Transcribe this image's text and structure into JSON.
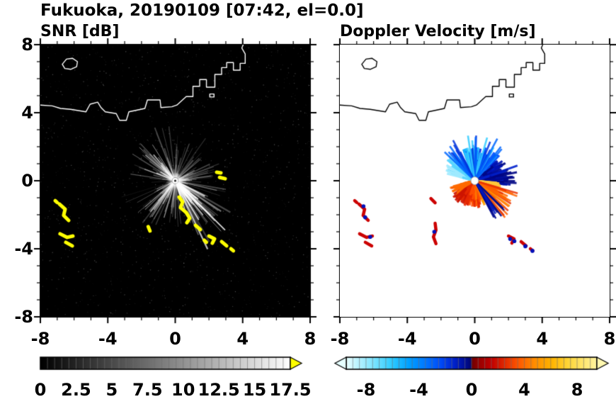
{
  "header": {
    "title": "Fukuoka, 20190109 [07:42, el=0.0]"
  },
  "chart_data": [
    {
      "type": "heatmap",
      "title": "SNR [dB]",
      "xlim": [
        -8,
        8
      ],
      "ylim": [
        -8,
        8
      ],
      "x_tick_values": [
        -8,
        -4,
        0,
        4,
        8
      ],
      "x_tick_labels": [
        "-8",
        "-4",
        "0",
        "4",
        "8"
      ],
      "y_tick_values": [
        -8,
        -4,
        0,
        4,
        8
      ],
      "y_tick_labels": [
        "-8",
        "-4",
        "0",
        "4",
        "8"
      ],
      "minor_tick_step": 1,
      "grid": false,
      "background_color": "#000000",
      "coastline_color": "#ffffff",
      "radar_center": [
        0,
        0
      ],
      "colorbar": {
        "range": [
          0,
          17.5
        ],
        "tick_values": [
          0,
          2.5,
          5,
          7.5,
          10,
          12.5,
          15,
          17.5
        ],
        "tick_labels": [
          "0",
          "2.5",
          "5",
          "7.5",
          "10",
          "12.5",
          "15",
          "17.5"
        ],
        "segment_step": 0.5,
        "stops": [
          [
            0,
            "#000000"
          ],
          [
            1,
            "#ffffff"
          ]
        ],
        "over_arrow_color": "#ffff00"
      }
    },
    {
      "type": "heatmap",
      "title": "Doppler Velocity [m/s]",
      "xlim": [
        -8,
        8
      ],
      "ylim": [
        -8,
        8
      ],
      "x_tick_values": [
        -8,
        -4,
        0,
        4,
        8
      ],
      "x_tick_labels": [
        "-8",
        "-4",
        "0",
        "4",
        "8"
      ],
      "y_tick_values": [
        -8,
        -4,
        0,
        4,
        8
      ],
      "y_tick_labels": [
        "-8",
        "-4",
        "0",
        "4",
        "8"
      ],
      "minor_tick_step": 1,
      "grid": false,
      "background_color": "#ffffff",
      "coastline_color": "#000000",
      "radar_center": [
        0,
        0
      ],
      "colorbar": {
        "range": [
          -9.5,
          9.5
        ],
        "tick_values": [
          -8,
          -4,
          0,
          4,
          8
        ],
        "tick_labels": [
          "-8",
          "-4",
          "0",
          "4",
          "8"
        ],
        "segment_step": 0.5,
        "stops": [
          [
            0.0,
            "#eaffff"
          ],
          [
            0.04,
            "#c0f4ff"
          ],
          [
            0.11,
            "#7ce4ff"
          ],
          [
            0.18,
            "#30ccff"
          ],
          [
            0.25,
            "#00a0ff"
          ],
          [
            0.32,
            "#0074ff"
          ],
          [
            0.38,
            "#0048f4"
          ],
          [
            0.43,
            "#0022cc"
          ],
          [
            0.475,
            "#000e96"
          ],
          [
            0.497,
            "#000670"
          ],
          [
            0.503,
            "#700000"
          ],
          [
            0.53,
            "#980000"
          ],
          [
            0.58,
            "#c00000"
          ],
          [
            0.63,
            "#e02800"
          ],
          [
            0.69,
            "#ff5a00"
          ],
          [
            0.75,
            "#ff8c00"
          ],
          [
            0.82,
            "#ffb400"
          ],
          [
            0.89,
            "#ffd83c"
          ],
          [
            1.0,
            "#fff4a0"
          ]
        ],
        "under_arrow_color": "#e6ffff",
        "over_arrow_color": "#fff8b0"
      }
    }
  ],
  "features": {
    "colors": {
      "snr_clutter": "#ffff00",
      "snr_ray": "#ffffff",
      "doppler_clutter_red": "#cc0000",
      "doppler_clutter_blue": "#0010bb"
    },
    "coastline": [
      [
        [
          -8.0,
          4.45
        ],
        [
          -7.3,
          4.4
        ],
        [
          -6.8,
          4.25
        ],
        [
          -6.2,
          4.2
        ],
        [
          -5.3,
          4.05
        ],
        [
          -5.05,
          4.5
        ],
        [
          -4.6,
          4.62
        ],
        [
          -4.4,
          4.3
        ],
        [
          -4.15,
          4.05
        ],
        [
          -3.5,
          3.95
        ],
        [
          -3.3,
          3.55
        ],
        [
          -2.9,
          3.55
        ],
        [
          -2.75,
          4.05
        ],
        [
          -1.8,
          4.25
        ],
        [
          -1.65,
          4.75
        ],
        [
          -0.9,
          4.75
        ],
        [
          -0.85,
          4.3
        ],
        [
          -0.2,
          4.35
        ],
        [
          0.1,
          4.45
        ],
        [
          0.65,
          4.95
        ],
        [
          1.05,
          4.95
        ],
        [
          1.05,
          5.55
        ],
        [
          1.45,
          5.55
        ],
        [
          1.45,
          5.95
        ],
        [
          1.85,
          5.95
        ],
        [
          1.85,
          5.5
        ],
        [
          2.35,
          5.5
        ],
        [
          2.35,
          6.25
        ],
        [
          2.75,
          6.25
        ],
        [
          2.75,
          6.65
        ],
        [
          3.05,
          6.65
        ],
        [
          3.05,
          6.95
        ],
        [
          3.45,
          6.95
        ],
        [
          3.45,
          6.5
        ],
        [
          3.85,
          6.5
        ],
        [
          3.85,
          6.9
        ],
        [
          4.15,
          6.9
        ],
        [
          4.15,
          7.45
        ],
        [
          3.95,
          7.8
        ],
        [
          4.05,
          8.05
        ]
      ],
      [
        [
          -6.7,
          6.85
        ],
        [
          -6.45,
          7.15
        ],
        [
          -6.1,
          7.2
        ],
        [
          -5.8,
          7.0
        ],
        [
          -5.85,
          6.7
        ],
        [
          -6.2,
          6.55
        ],
        [
          -6.55,
          6.6
        ],
        [
          -6.7,
          6.85
        ]
      ],
      [
        [
          2.05,
          5.1
        ],
        [
          2.3,
          5.1
        ],
        [
          2.3,
          4.92
        ],
        [
          2.05,
          4.92
        ],
        [
          2.05,
          5.1
        ]
      ]
    ],
    "snr_rays": [
      {
        "az": [
          0,
          360
        ],
        "count": 170,
        "len": [
          0.4,
          3.4
        ],
        "alpha": [
          0.04,
          0.38
        ],
        "width": [
          0.7,
          1.7
        ]
      },
      {
        "az": [
          116,
          164
        ],
        "count": 42,
        "len": [
          1.0,
          4.7
        ],
        "alpha": [
          0.2,
          0.9
        ],
        "width": [
          0.9,
          2.3
        ]
      },
      {
        "az": [
          288,
          334
        ],
        "count": 26,
        "len": [
          0.8,
          3.2
        ],
        "alpha": [
          0.15,
          0.7
        ],
        "width": [
          0.8,
          2.0
        ]
      },
      {
        "az": [
          196,
          244
        ],
        "count": 22,
        "len": [
          0.7,
          3.3
        ],
        "alpha": [
          0.12,
          0.6
        ],
        "width": [
          0.8,
          1.9
        ]
      },
      {
        "az": [
          60,
          104
        ],
        "count": 16,
        "len": [
          0.6,
          2.9
        ],
        "alpha": [
          0.1,
          0.5
        ],
        "width": [
          0.8,
          1.8
        ]
      }
    ],
    "snr_clutter": [
      [
        [
          -6.87,
          -1.37
        ],
        [
          -6.53,
          -1.67
        ],
        [
          -6.62,
          -2.04
        ],
        [
          -6.32,
          -2.33
        ]
      ],
      [
        [
          -7.12,
          -1.17
        ],
        [
          -7.0,
          -1.28
        ]
      ],
      [
        [
          -6.83,
          -3.12
        ],
        [
          -6.41,
          -3.33
        ],
        [
          -6.07,
          -3.25
        ]
      ],
      [
        [
          -6.49,
          -3.62
        ],
        [
          -6.11,
          -3.83
        ]
      ],
      [
        [
          0.23,
          -0.96
        ],
        [
          0.44,
          -1.25
        ],
        [
          0.31,
          -1.58
        ],
        [
          0.65,
          -1.87
        ],
        [
          0.86,
          -2.2
        ],
        [
          0.69,
          -2.46
        ]
      ],
      [
        [
          1.2,
          -2.62
        ],
        [
          1.49,
          -2.87
        ]
      ],
      [
        [
          2.0,
          -3.25
        ],
        [
          2.33,
          -3.42
        ],
        [
          2.2,
          -3.67
        ]
      ],
      [
        [
          2.75,
          -3.58
        ],
        [
          3.05,
          -3.83
        ]
      ],
      [
        [
          3.3,
          -4.0
        ],
        [
          3.45,
          -4.12
        ]
      ],
      [
        [
          1.72,
          -3.5
        ],
        [
          1.85,
          -3.62
        ]
      ],
      [
        [
          2.63,
          0.2
        ],
        [
          2.96,
          0.12
        ]
      ],
      [
        [
          2.46,
          0.5
        ],
        [
          2.71,
          0.46
        ]
      ],
      [
        [
          -1.6,
          -2.7
        ],
        [
          -1.5,
          -2.95
        ]
      ]
    ],
    "doppler_fans": [
      {
        "az": [
          -78,
          92
        ],
        "count": 320,
        "len": [
          0.5,
          2.1
        ],
        "palette": [
          "#9feaff",
          "#55d4ff",
          "#17b4ff",
          "#0084ff",
          "#0054ff",
          "#0030e8",
          "#0014b4",
          "#000a86"
        ],
        "az_palette": true,
        "width": 3.2,
        "alpha": 0.92
      },
      {
        "az": [
          -48,
          42
        ],
        "count": 36,
        "len": [
          1.7,
          2.85
        ],
        "palette": [
          "#33ccff",
          "#0066ff",
          "#0033dd"
        ],
        "az_palette": false,
        "width": 2.6,
        "alpha": 0.85
      },
      {
        "az": [
          66,
          98
        ],
        "count": 46,
        "len": [
          0.7,
          2.7
        ],
        "palette": [
          "#0020cc",
          "#000e9e",
          "#000684"
        ],
        "az_palette": false,
        "width": 3.0,
        "alpha": 0.9
      },
      {
        "az": [
          95,
          258
        ],
        "count": 320,
        "len": [
          0.4,
          1.65
        ],
        "palette": [
          "#ffc83c",
          "#ffa000",
          "#ff7800",
          "#ff5000",
          "#e62800",
          "#cc1400",
          "#ff6a00"
        ],
        "az_palette": true,
        "width": 3.2,
        "alpha": 0.92
      },
      {
        "az": [
          106,
          150
        ],
        "count": 30,
        "len": [
          1.5,
          2.9
        ],
        "palette": [
          "#ff8c00",
          "#ff6400",
          "#e83000"
        ],
        "az_palette": false,
        "width": 2.6,
        "alpha": 0.85
      },
      {
        "az": [
          128,
          160
        ],
        "count": 10,
        "len": [
          1.8,
          3.0
        ],
        "palette": [
          "#0018c0",
          "#000a90"
        ],
        "az_palette": false,
        "width": 2.4,
        "alpha": 0.92
      }
    ],
    "doppler_clutter_red": [
      [
        [
          -6.87,
          -1.37
        ],
        [
          -6.53,
          -1.67
        ],
        [
          -6.62,
          -2.04
        ],
        [
          -6.32,
          -2.33
        ]
      ],
      [
        [
          -7.12,
          -1.17
        ],
        [
          -7.0,
          -1.28
        ]
      ],
      [
        [
          -6.83,
          -3.12
        ],
        [
          -6.41,
          -3.33
        ],
        [
          -6.07,
          -3.25
        ]
      ],
      [
        [
          -6.49,
          -3.62
        ],
        [
          -6.11,
          -3.83
        ]
      ],
      [
        [
          2.0,
          -3.25
        ],
        [
          2.33,
          -3.42
        ],
        [
          2.2,
          -3.67
        ]
      ],
      [
        [
          2.75,
          -3.58
        ],
        [
          3.05,
          -3.83
        ]
      ],
      [
        [
          3.3,
          -4.0
        ],
        [
          3.45,
          -4.12
        ]
      ],
      [
        [
          -2.6,
          -1.05
        ],
        [
          -2.35,
          -1.3
        ]
      ],
      [
        [
          -2.35,
          -2.5
        ],
        [
          -2.3,
          -2.9
        ],
        [
          -2.45,
          -3.3
        ],
        [
          -2.3,
          -3.7
        ]
      ]
    ],
    "doppler_clutter_blue": [
      [
        -6.6,
        -1.5
      ],
      [
        -6.5,
        -2.15
      ],
      [
        -6.2,
        -3.3
      ],
      [
        2.35,
        -3.55
      ],
      [
        3.0,
        -3.85
      ],
      [
        3.42,
        -4.12
      ],
      [
        2.1,
        -3.42
      ],
      [
        -2.4,
        -3.0
      ]
    ]
  }
}
